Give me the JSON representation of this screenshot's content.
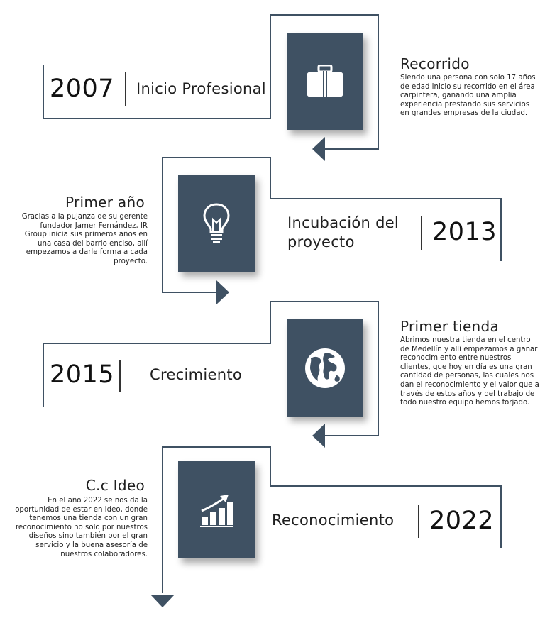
{
  "colors": {
    "box": "#3f5163",
    "line": "#3f5163"
  },
  "milestones": [
    {
      "year": "2007",
      "label": "Inicio Profesional",
      "icon": "briefcase-icon",
      "title": "Recorrido",
      "description": "Siendo una persona con solo 17 años de edad inicio su recorrido en el área carpintera, ganando una amplia experiencia prestando sus servicios en grandes empresas de la ciudad."
    },
    {
      "year": "2013",
      "label": "Incubación del proyecto",
      "icon": "lightbulb-icon",
      "title": "Primer año",
      "description": "Gracias a la pujanza de su gerente fundador Jamer Fernández, IR Group inicia sus primeros años en una casa del barrio enciso, allí empezamos a darle forma a cada proyecto."
    },
    {
      "year": "2015",
      "label": "Crecimiento",
      "icon": "globe-icon",
      "title": "Primer tienda",
      "description": "Abrimos nuestra tienda en el centro de Medellín y allí empezamos a ganar reconocimiento entre nuestros clientes, que hoy en día es una gran cantidad de personas, las cuales nos dan el reconocimiento y el valor que a través de estos años y del trabajo de todo nuestro equipo hemos forjado."
    },
    {
      "year": "2022",
      "label": "Reconocimiento",
      "icon": "growth-chart-icon",
      "title": "C.c Ideo",
      "description": "En el año 2022 se nos da la oportunidad de estar en Ideo, donde tenemos una tienda con un gran reconocimiento no solo por nuestros diseños sino también por el gran servicio y la buena asesoría de nuestros colaboradores."
    }
  ]
}
